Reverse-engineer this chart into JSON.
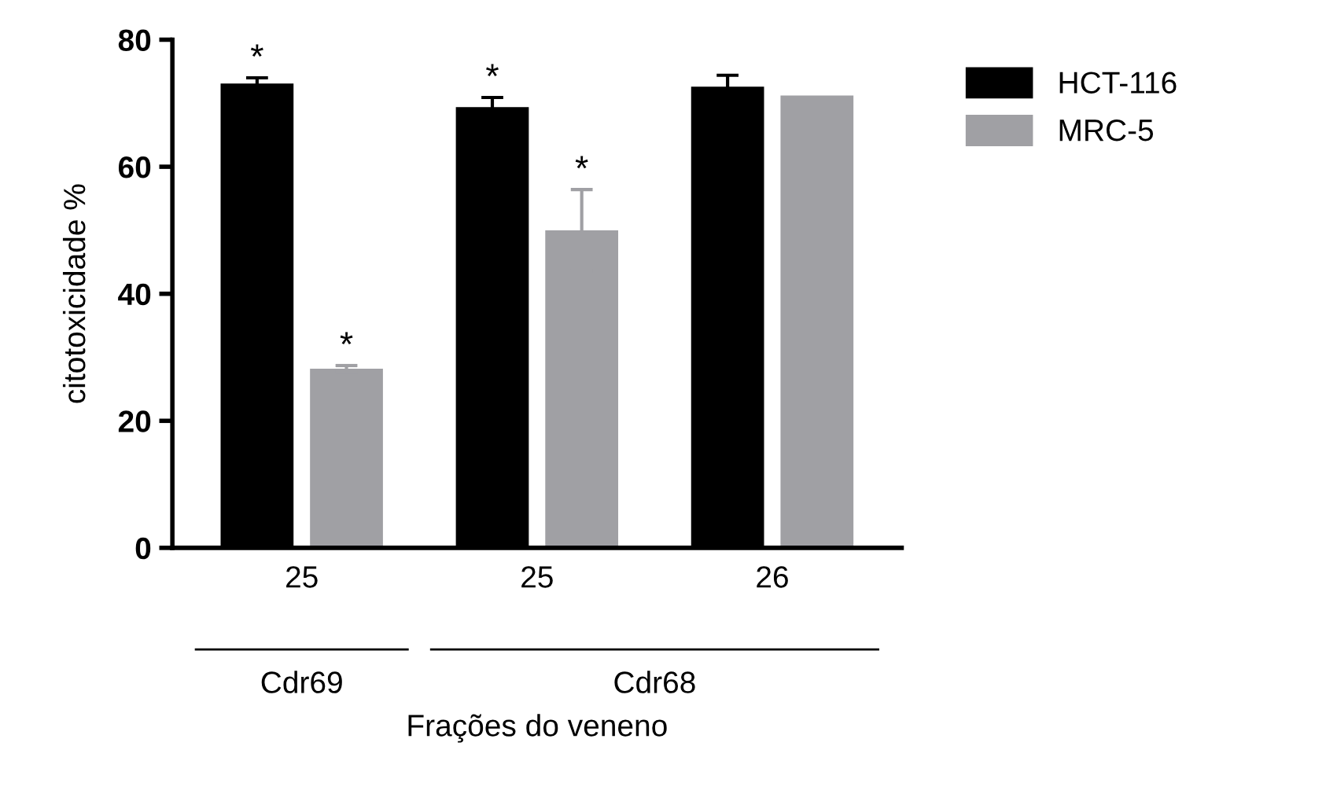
{
  "chart_data": {
    "type": "bar",
    "xlabel": "Frações do veneno",
    "ylabel": "citotoxicidade %",
    "categories": [
      "25",
      "25",
      "26"
    ],
    "series": [
      {
        "name": "HCT-116",
        "color": "#000000",
        "values": [
          73.1,
          69.4,
          72.6
        ],
        "errors": [
          0.9,
          1.5,
          1.8
        ],
        "value_labels": [
          "*",
          "*",
          null
        ]
      },
      {
        "name": "MRC-5",
        "color": "#a0a0a4",
        "values": [
          28.2,
          50.0,
          71.2
        ],
        "errors": [
          0.5,
          6.4,
          null
        ],
        "value_labels": [
          "*",
          "*",
          null
        ]
      }
    ],
    "ylim": [
      0,
      80
    ],
    "yticks": [
      0,
      20,
      40,
      60,
      80
    ],
    "grid": false,
    "legend": "top right",
    "annotations": [
      "Cdr69",
      "Cdr68"
    ]
  }
}
